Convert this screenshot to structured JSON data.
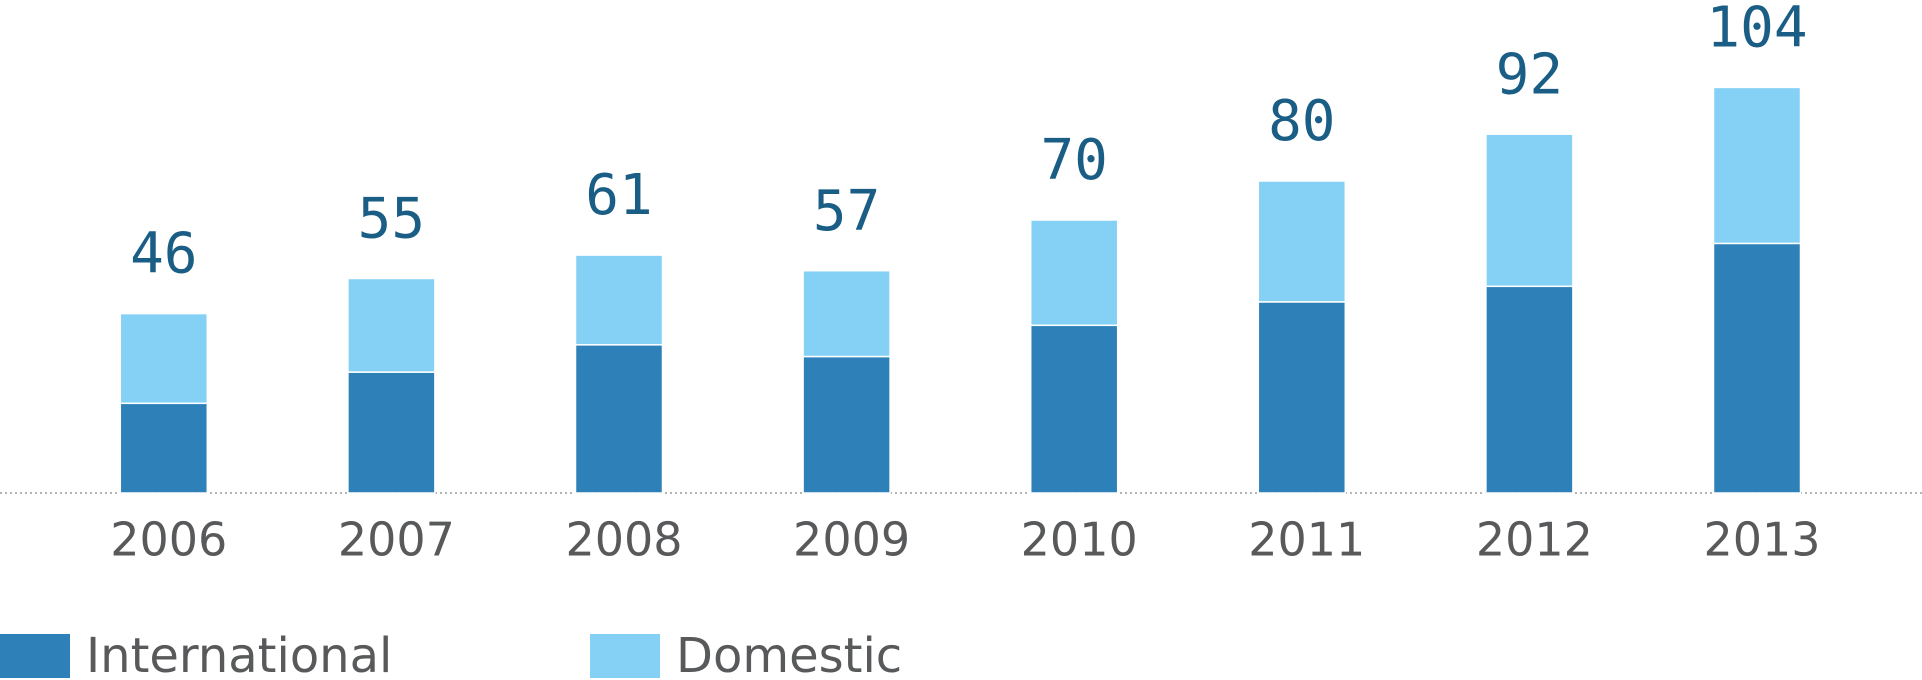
{
  "chart_data": {
    "type": "stacked-bar",
    "categories": [
      "2006",
      "2007",
      "2008",
      "2009",
      "2010",
      "2011",
      "2012",
      "2013"
    ],
    "series": [
      {
        "name": "International",
        "color": "#2e80b9",
        "values": [
          23,
          31,
          38,
          35,
          43,
          49,
          53,
          64
        ]
      },
      {
        "name": "Domestic",
        "color": "#84d1f5",
        "values": [
          23,
          24,
          23,
          22,
          27,
          31,
          39,
          40
        ]
      }
    ],
    "totals": [
      46,
      55,
      61,
      57,
      70,
      80,
      92,
      104
    ],
    "ylim": [
      0,
      110
    ]
  }
}
